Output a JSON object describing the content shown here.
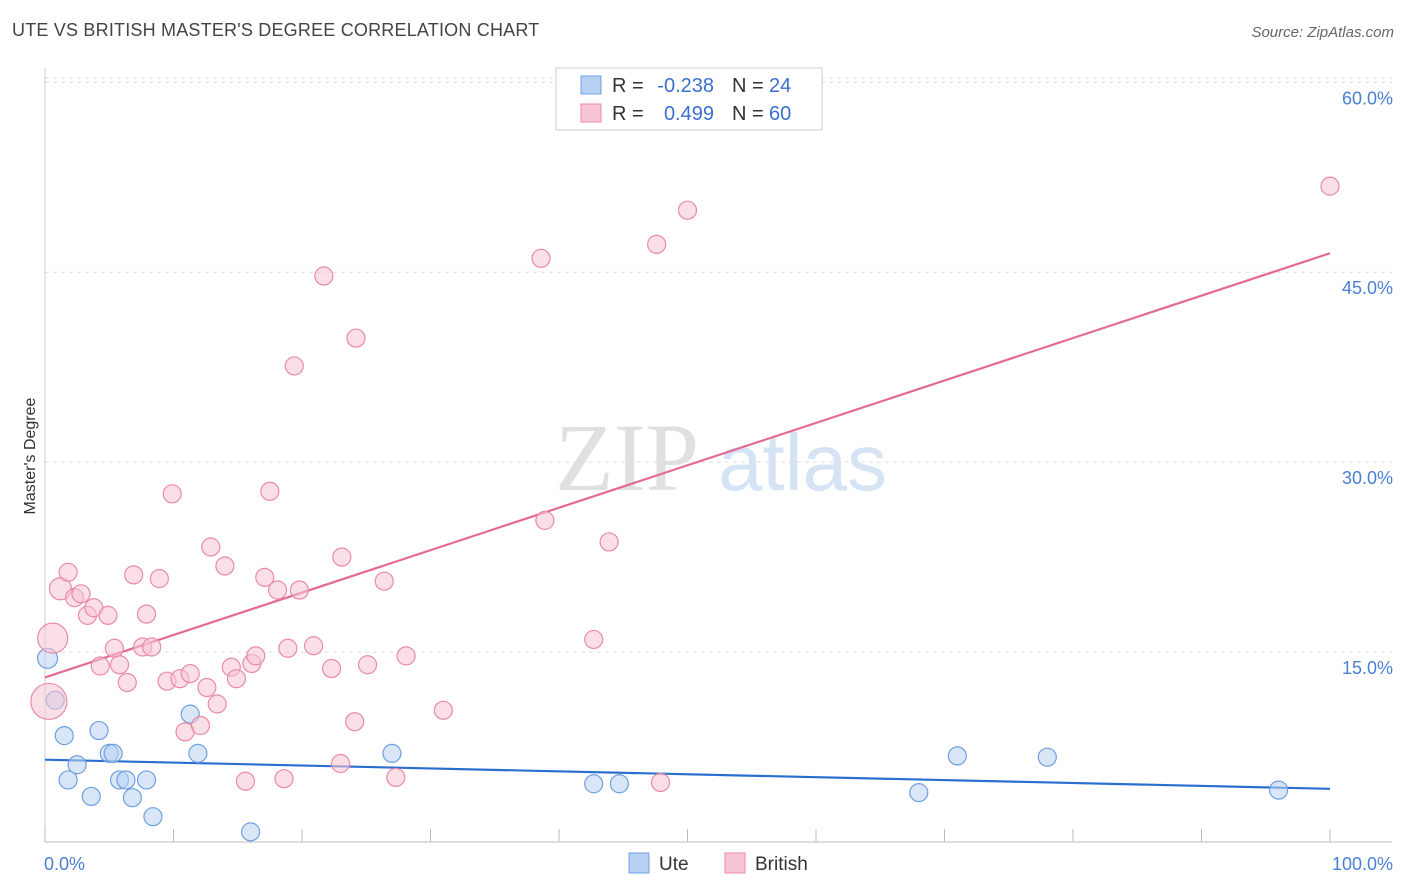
{
  "header": {
    "title": "UTE VS BRITISH MASTER'S DEGREE CORRELATION CHART",
    "source": "Source: ZipAtlas.com"
  },
  "watermark": {
    "zip": "ZIP",
    "atlas": "atlas"
  },
  "colors": {
    "ute_fill": "#b8d1f3",
    "ute_stroke": "#6f9fe0",
    "ute_line": "#2a6fd0",
    "british_fill": "#f8c5d4",
    "british_stroke": "#e98aa6",
    "british_line": "#e46a93",
    "accent_text": "#4a7fd4",
    "grid": "#dddddd"
  },
  "legend": {
    "ute": {
      "r_label": "R =",
      "r_value": "-0.238",
      "n_label": "N =",
      "n_value": "24"
    },
    "british": {
      "r_label": "R =",
      "r_value": "0.499",
      "n_label": "N =",
      "n_value": "60"
    }
  },
  "chart_data": {
    "type": "scatter",
    "title": "UTE VS BRITISH MASTER'S DEGREE CORRELATION CHART",
    "xlabel": "",
    "ylabel": "Master's Degree",
    "xlim": [
      0,
      100
    ],
    "ylim": [
      0,
      62
    ],
    "x_tick_labels": [
      {
        "value": 0,
        "label": "0.0%"
      },
      {
        "value": 100,
        "label": "100.0%"
      }
    ],
    "y_tick_labels": [
      {
        "value": 15,
        "label": "15.0%"
      },
      {
        "value": 30,
        "label": "30.0%"
      },
      {
        "value": 45,
        "label": "45.0%"
      },
      {
        "value": 60,
        "label": "60.0%"
      }
    ],
    "series": [
      {
        "name": "Ute",
        "trend": {
          "x0": 0,
          "y0": 6.5,
          "x1": 100,
          "y1": 4.2
        },
        "points": [
          [
            0.2,
            14.5,
            10
          ],
          [
            0.8,
            11.2,
            9
          ],
          [
            1.5,
            8.4,
            9
          ],
          [
            1.8,
            4.9,
            9
          ],
          [
            2.5,
            6.1,
            9
          ],
          [
            3.6,
            3.6,
            9
          ],
          [
            4.2,
            8.8,
            9
          ],
          [
            5.0,
            7.0,
            9
          ],
          [
            5.3,
            7.0,
            9
          ],
          [
            5.8,
            4.9,
            9
          ],
          [
            6.3,
            4.9,
            9
          ],
          [
            6.8,
            3.5,
            9
          ],
          [
            7.9,
            4.9,
            9
          ],
          [
            8.4,
            2.0,
            9
          ],
          [
            11.3,
            10.1,
            9
          ],
          [
            11.9,
            7.0,
            9
          ],
          [
            16.0,
            0.8,
            9
          ],
          [
            27.0,
            7.0,
            9
          ],
          [
            42.7,
            4.6,
            9
          ],
          [
            44.7,
            4.6,
            9
          ],
          [
            68.0,
            3.9,
            9
          ],
          [
            71.0,
            6.8,
            9
          ],
          [
            78.0,
            6.7,
            9
          ],
          [
            96.0,
            4.1,
            9
          ]
        ]
      },
      {
        "name": "British",
        "trend": {
          "x0": 0,
          "y0": 13.0,
          "x1": 100,
          "y1": 46.5
        },
        "points": [
          [
            0.3,
            11.1,
            18
          ],
          [
            0.6,
            16.1,
            15
          ],
          [
            1.2,
            20.0,
            11
          ],
          [
            1.8,
            21.3,
            9
          ],
          [
            2.3,
            19.3,
            9
          ],
          [
            2.8,
            19.6,
            9
          ],
          [
            3.3,
            17.9,
            9
          ],
          [
            3.8,
            18.5,
            9
          ],
          [
            4.3,
            13.9,
            9
          ],
          [
            4.9,
            17.9,
            9
          ],
          [
            5.4,
            15.3,
            9
          ],
          [
            5.8,
            14.0,
            9
          ],
          [
            6.4,
            12.6,
            9
          ],
          [
            6.9,
            21.1,
            9
          ],
          [
            7.6,
            15.4,
            9
          ],
          [
            7.9,
            18.0,
            9
          ],
          [
            8.3,
            15.4,
            9
          ],
          [
            8.9,
            20.8,
            9
          ],
          [
            9.5,
            12.7,
            9
          ],
          [
            9.9,
            27.5,
            9
          ],
          [
            10.5,
            12.9,
            9
          ],
          [
            10.9,
            8.7,
            9
          ],
          [
            11.3,
            13.3,
            9
          ],
          [
            12.1,
            9.2,
            9
          ],
          [
            12.6,
            12.2,
            9
          ],
          [
            12.9,
            23.3,
            9
          ],
          [
            13.4,
            10.9,
            9
          ],
          [
            14.0,
            21.8,
            9
          ],
          [
            14.5,
            13.8,
            9
          ],
          [
            14.9,
            12.9,
            9
          ],
          [
            15.6,
            4.8,
            9
          ],
          [
            16.1,
            14.1,
            9
          ],
          [
            16.4,
            14.7,
            9
          ],
          [
            17.1,
            20.9,
            9
          ],
          [
            17.5,
            27.7,
            9
          ],
          [
            18.1,
            19.9,
            9
          ],
          [
            18.6,
            5.0,
            9
          ],
          [
            18.9,
            15.3,
            9
          ],
          [
            19.4,
            37.6,
            9
          ],
          [
            19.8,
            19.9,
            9
          ],
          [
            20.9,
            15.5,
            9
          ],
          [
            21.7,
            44.7,
            9
          ],
          [
            22.3,
            13.7,
            9
          ],
          [
            23.0,
            6.2,
            9
          ],
          [
            23.1,
            22.5,
            9
          ],
          [
            24.1,
            9.5,
            9
          ],
          [
            24.2,
            39.8,
            9
          ],
          [
            25.1,
            14.0,
            9
          ],
          [
            26.4,
            20.6,
            9
          ],
          [
            27.3,
            5.1,
            9
          ],
          [
            28.1,
            14.7,
            9
          ],
          [
            31.0,
            10.4,
            9
          ],
          [
            38.6,
            46.1,
            9
          ],
          [
            38.9,
            25.4,
            9
          ],
          [
            42.7,
            16.0,
            9
          ],
          [
            43.9,
            23.7,
            9
          ],
          [
            47.6,
            47.2,
            9
          ],
          [
            47.9,
            4.7,
            9
          ],
          [
            50.0,
            49.9,
            9
          ],
          [
            100.0,
            51.8,
            9
          ]
        ]
      }
    ]
  },
  "bottom_legend": {
    "ute": "Ute",
    "british": "British"
  }
}
